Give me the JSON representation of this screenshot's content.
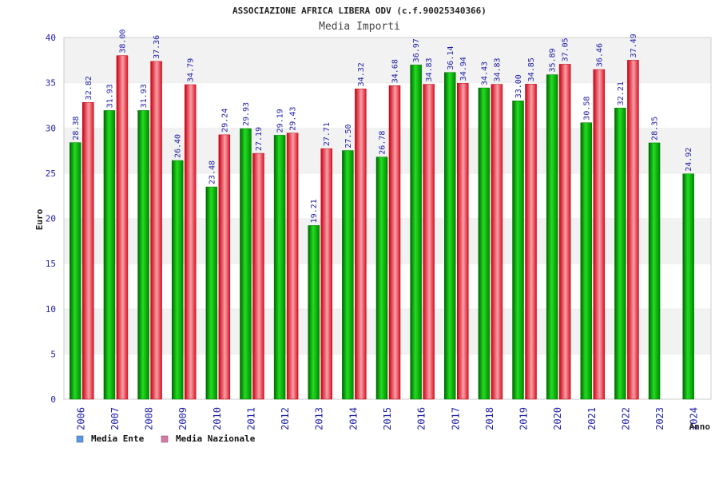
{
  "chart_data": {
    "type": "bar",
    "title": "ASSOCIAZIONE AFRICA LIBERA ODV (c.f.90025340366)",
    "subtitle": "Media Importi",
    "xlabel": "Anno",
    "ylabel": "Euro",
    "ylim": [
      0,
      40
    ],
    "yticks": [
      "0",
      "5",
      "10",
      "15",
      "20",
      "25",
      "30",
      "35",
      "40"
    ],
    "grid": true,
    "legend_position": "bottom-left",
    "categories": [
      "2006",
      "2007",
      "2008",
      "2009",
      "2010",
      "2011",
      "2012",
      "2013",
      "2014",
      "2015",
      "2016",
      "2017",
      "2018",
      "2019",
      "2020",
      "2021",
      "2022",
      "2023",
      "2024"
    ],
    "series": [
      {
        "name": "Media Ente",
        "color": "#00aa00",
        "legend_color": "#5599ee",
        "values": [
          28.38,
          31.93,
          31.93,
          26.4,
          23.48,
          29.93,
          29.19,
          19.21,
          27.5,
          26.78,
          36.97,
          36.14,
          34.43,
          33.0,
          35.89,
          30.58,
          32.21,
          28.35,
          24.92
        ],
        "labels": [
          "28.38",
          "31.93",
          "31.93",
          "26.40",
          "23.48",
          "29.93",
          "29.19",
          "19.21",
          "27.50",
          "26.78",
          "36.97",
          "36.14",
          "34.43",
          "33.00",
          "35.89",
          "30.58",
          "32.21",
          "28.35",
          "24.92"
        ]
      },
      {
        "name": "Media Nazionale",
        "color": "#ee2233",
        "legend_color": "#dd77aa",
        "values": [
          32.82,
          38.0,
          37.36,
          34.79,
          29.24,
          27.19,
          29.43,
          27.71,
          34.32,
          34.68,
          34.83,
          34.94,
          34.83,
          34.85,
          37.05,
          36.46,
          37.49,
          null,
          null
        ],
        "labels": [
          "32.82",
          "38.00",
          "37.36",
          "34.79",
          "29.24",
          "27.19",
          "29.43",
          "27.71",
          "34.32",
          "34.68",
          "34.83",
          "34.94",
          "34.83",
          "34.85",
          "37.05",
          "36.46",
          "37.49",
          null,
          null
        ]
      }
    ]
  }
}
